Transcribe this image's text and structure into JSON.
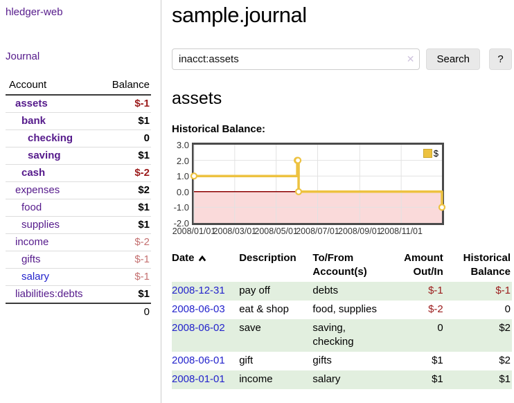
{
  "sidebar": {
    "app_title": "hledger-web",
    "nav": {
      "journal": "Journal"
    },
    "accounts_table": {
      "headers": {
        "account": "Account",
        "balance": "Balance"
      },
      "rows": [
        {
          "name": "assets",
          "level": 1,
          "bold": true,
          "balance": "$-1",
          "negative": "strong"
        },
        {
          "name": "bank",
          "level": 2,
          "bold": true,
          "balance": "$1"
        },
        {
          "name": "checking",
          "level": 3,
          "bold": true,
          "balance": "0"
        },
        {
          "name": "saving",
          "level": 3,
          "bold": true,
          "balance": "$1"
        },
        {
          "name": "cash",
          "level": 2,
          "bold": true,
          "balance": "$-2",
          "negative": "strong"
        },
        {
          "name": "expenses",
          "level": 1,
          "bold": false,
          "balance": "$2"
        },
        {
          "name": "food",
          "level": 2,
          "bold": false,
          "balance": "$1"
        },
        {
          "name": "supplies",
          "level": 2,
          "bold": false,
          "balance": "$1"
        },
        {
          "name": "income",
          "level": 1,
          "bold": false,
          "balance": "$-2",
          "negative": "soft"
        },
        {
          "name": "gifts",
          "level": 2,
          "bold": false,
          "balance": "$-1",
          "negative": "soft"
        },
        {
          "name": "salary",
          "level": 2,
          "bold": false,
          "balance": "$-1",
          "negative": "soft",
          "link_blue": true
        },
        {
          "name": "liabilities:debts",
          "level": 1,
          "bold": false,
          "balance": "$1"
        }
      ],
      "total": "0"
    }
  },
  "main": {
    "title": "sample.journal",
    "search": {
      "query": "inacct:assets",
      "clear_icon": "✕",
      "search_button": "Search",
      "help_button": "?"
    },
    "account_heading": "assets",
    "chart_label": "Historical Balance:",
    "transactions": {
      "headers": {
        "date": "Date",
        "description": "Description",
        "accounts": "To/From Account(s)",
        "amount": "Amount Out/In",
        "balance": "Historical Balance"
      },
      "rows": [
        {
          "date": "2008-12-31",
          "description": "pay off",
          "accounts": "debts",
          "amount": "$-1",
          "amount_negative": true,
          "balance": "$-1",
          "balance_negative": true
        },
        {
          "date": "2008-06-03",
          "description": "eat & shop",
          "accounts": "food, supplies",
          "amount": "$-2",
          "amount_negative": true,
          "balance": "0",
          "balance_negative": false
        },
        {
          "date": "2008-06-02",
          "description": "save",
          "accounts": "saving, checking",
          "amount": "0",
          "amount_negative": false,
          "balance": "$2",
          "balance_negative": false
        },
        {
          "date": "2008-06-01",
          "description": "gift",
          "accounts": "gifts",
          "amount": "$1",
          "amount_negative": false,
          "balance": "$2",
          "balance_negative": false
        },
        {
          "date": "2008-01-01",
          "description": "income",
          "accounts": "salary",
          "amount": "$1",
          "amount_negative": false,
          "balance": "$1",
          "balance_negative": false
        }
      ]
    }
  },
  "chart_data": {
    "type": "line",
    "title": "Historical Balance",
    "step": true,
    "series": [
      {
        "name": "$",
        "color": "#edc240",
        "points": [
          {
            "date": "2008-01-01",
            "value": 1
          },
          {
            "date": "2008-06-01",
            "value": 2
          },
          {
            "date": "2008-06-02",
            "value": 2
          },
          {
            "date": "2008-06-03",
            "value": 0
          },
          {
            "date": "2008-12-31",
            "value": -1
          }
        ]
      }
    ],
    "x_range": [
      "2008-01-01",
      "2008-12-31"
    ],
    "x_ticks": [
      "2008/01/01",
      "2008/03/01",
      "2008/05/01",
      "2008/07/01",
      "2008/09/01",
      "2008/11/01"
    ],
    "y_ticks": [
      "3.0",
      "2.0",
      "1.0",
      "0.0",
      "-1.0",
      "-2.0"
    ],
    "ylim": [
      -2,
      3
    ],
    "grid": true,
    "legend": {
      "label": "$",
      "position": "top-right"
    },
    "negative_region_color": "#fadada",
    "zero_line_color": "#8b0000",
    "gridline_color": "#e2e2e2"
  },
  "colors": {
    "link_purple": "#551a8b",
    "link_blue": "#2323cc",
    "negative_red": "#9b1b1b",
    "negative_soft_red": "#c47070",
    "row_stripe_green": "#e2efdf",
    "series_gold": "#edc240"
  }
}
